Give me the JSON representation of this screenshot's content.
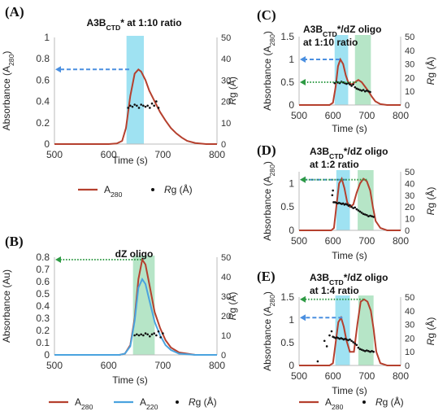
{
  "chart_data": [
    {
      "panel": "(A)",
      "type": "line",
      "title": "A3B<sub>CTD</sub>* at 1:10 ratio",
      "xlabel": "Time (s)",
      "ylabel_left": "Absorbance (A<sub>280</sub>)",
      "ylabel_right": "<i>R</i>g (Å)",
      "xlim": [
        500,
        800
      ],
      "ylim_left": [
        0,
        1
      ],
      "ylim_right": [
        0,
        50
      ],
      "x_ticks": [
        "500",
        "600",
        "700",
        "800"
      ],
      "y_ticks_left": [
        "0",
        "0.2",
        "0.4",
        "0.6",
        "0.8",
        "1"
      ],
      "y_ticks_right": [
        "0",
        "10",
        "20",
        "30",
        "40",
        "50"
      ],
      "shading": [
        {
          "x": [
            633,
            665
          ],
          "color": "#7fd8ee"
        }
      ],
      "arrows": [
        {
          "y": 0.7,
          "x_from": 638,
          "x_to": 503,
          "style": "dashed",
          "color": "#4a8fe0"
        }
      ],
      "series": [
        {
          "name": "A<sub>280</sub>",
          "axis": "left",
          "color": "#b5402e",
          "x": [
            500,
            600,
            615,
            625,
            632,
            640,
            648,
            655,
            660,
            668,
            675,
            685,
            695,
            705,
            715,
            725,
            735,
            745,
            760,
            780,
            800
          ],
          "y": [
            0,
            0,
            0.005,
            0.03,
            0.15,
            0.45,
            0.66,
            0.7,
            0.68,
            0.6,
            0.5,
            0.4,
            0.3,
            0.22,
            0.15,
            0.1,
            0.06,
            0.03,
            0.01,
            0,
            0
          ]
        },
        {
          "name": "Rg",
          "axis": "right",
          "type": "scatter",
          "x": [
            636,
            640,
            644,
            648,
            652,
            656,
            660,
            664,
            668,
            672,
            676,
            680,
            684,
            688,
            692
          ],
          "y": [
            17,
            18,
            17.5,
            18.5,
            18,
            17,
            18.5,
            18,
            17.5,
            18,
            17,
            19,
            18,
            20,
            17
          ]
        }
      ]
    },
    {
      "panel": "(B)",
      "type": "line",
      "title": "dZ oligo",
      "xlabel": "Time (s)",
      "ylabel_left": "Absorbance (Au)",
      "ylabel_right": "<i>R</i>g (Å)",
      "xlim": [
        500,
        800
      ],
      "ylim_left": [
        0,
        0.8
      ],
      "ylim_right": [
        0,
        50
      ],
      "x_ticks": [
        "500",
        "600",
        "700",
        "800"
      ],
      "y_ticks_left": [
        "0",
        "0.1",
        "0.2",
        "0.3",
        "0.4",
        "0.5",
        "0.6",
        "0.7",
        "0.8"
      ],
      "y_ticks_right": [
        "0",
        "10",
        "20",
        "30",
        "40",
        "50"
      ],
      "shading": [
        {
          "x": [
            645,
            685
          ],
          "color": "#9edcb4"
        }
      ],
      "arrows": [
        {
          "y": 0.78,
          "x_from": 660,
          "x_to": 503,
          "style": "dotted",
          "color": "#2e9a44"
        }
      ],
      "series": [
        {
          "name": "A<sub>280</sub>",
          "axis": "left",
          "color": "#b5402e",
          "x": [
            500,
            620,
            630,
            640,
            648,
            655,
            662,
            668,
            675,
            685,
            695,
            705,
            715,
            730,
            745,
            760,
            800
          ],
          "y": [
            0,
            0,
            0.01,
            0.08,
            0.3,
            0.62,
            0.78,
            0.74,
            0.58,
            0.35,
            0.22,
            0.12,
            0.06,
            0.02,
            0.01,
            0,
            0
          ]
        },
        {
          "name": "A<sub>220</sub>",
          "axis": "left",
          "color": "#4aa3df",
          "x": [
            500,
            620,
            630,
            640,
            648,
            655,
            662,
            668,
            675,
            685,
            695,
            705,
            715,
            730,
            760,
            800
          ],
          "y": [
            0,
            0,
            0.01,
            0.07,
            0.28,
            0.55,
            0.62,
            0.58,
            0.45,
            0.27,
            0.16,
            0.08,
            0.04,
            0.01,
            0,
            0
          ]
        },
        {
          "name": "Rg",
          "axis": "right",
          "type": "scatter",
          "x": [
            648,
            652,
            656,
            660,
            664,
            668,
            672,
            676,
            680,
            684,
            688,
            692,
            696,
            700
          ],
          "y": [
            10,
            10.5,
            10,
            10.5,
            10,
            11,
            10.5,
            9.5,
            10.5,
            11,
            10,
            12,
            9,
            11
          ]
        }
      ]
    },
    {
      "panel": "(C)",
      "type": "line",
      "title": "A3B<sub>CTD</sub>*/dZ oligo at 1:10 ratio",
      "xlabel": "Time (s)",
      "ylabel_left": "Absorbance (A<sub>280</sub>)",
      "ylabel_right": "<i>R</i>g (Å)",
      "xlim": [
        500,
        800
      ],
      "ylim_left": [
        0,
        1.5
      ],
      "ylim_right": [
        0,
        50
      ],
      "x_ticks": [
        "500",
        "600",
        "700",
        "800"
      ],
      "y_ticks_left": [
        "0",
        "0.5",
        "1",
        "1.5"
      ],
      "y_ticks_right": [
        "0",
        "10",
        "20",
        "30",
        "40",
        "50"
      ],
      "shading": [
        {
          "x": [
            605,
            645
          ],
          "color": "#7fd8ee"
        },
        {
          "x": [
            665,
            712
          ],
          "color": "#9edcb4"
        }
      ],
      "arrows": [
        {
          "y": 1.0,
          "x_from": 620,
          "x_to": 503,
          "style": "dashed",
          "color": "#4a8fe0"
        },
        {
          "y": 0.5,
          "x_from": 670,
          "x_to": 503,
          "style": "dotted",
          "color": "#2e9a44"
        }
      ],
      "series": [
        {
          "name": "A<sub>280</sub>",
          "axis": "left",
          "color": "#b5402e",
          "x": [
            500,
            590,
            600,
            608,
            615,
            622,
            630,
            638,
            645,
            655,
            665,
            675,
            685,
            695,
            705,
            715,
            725,
            740,
            760,
            800
          ],
          "y": [
            0,
            0,
            0.05,
            0.4,
            0.85,
            1.0,
            0.9,
            0.65,
            0.5,
            0.45,
            0.5,
            0.55,
            0.5,
            0.4,
            0.3,
            0.18,
            0.08,
            0.02,
            0,
            0
          ]
        },
        {
          "name": "Rg",
          "axis": "right",
          "type": "scatter",
          "x": [
            605,
            610,
            615,
            620,
            625,
            630,
            635,
            640,
            645,
            650,
            655,
            660,
            665,
            670,
            675,
            680,
            685,
            690,
            695,
            700,
            705,
            710
          ],
          "y": [
            16,
            17,
            16.5,
            16,
            17,
            16.5,
            16,
            15.5,
            16,
            15,
            14,
            15,
            13,
            12,
            11.5,
            11,
            10.5,
            11,
            10,
            10.5,
            10,
            9.5
          ]
        }
      ]
    },
    {
      "panel": "(D)",
      "type": "line",
      "title": "A3B<sub>CTD</sub>*/dZ oligo at 1:2 ratio",
      "xlabel": "Time (s)",
      "ylabel_left": "Absorbance (A<sub>280</sub>)",
      "ylabel_right": "<i>R</i>g (Å)",
      "xlim": [
        500,
        800
      ],
      "ylim_left": [
        0,
        1.25
      ],
      "ylim_right": [
        0,
        50
      ],
      "x_ticks": [
        "500",
        "600",
        "700",
        "800"
      ],
      "y_ticks_left": [
        "0",
        "0.5",
        "1"
      ],
      "y_ticks_right": [
        "0",
        "10",
        "20",
        "30",
        "40",
        "50"
      ],
      "shading": [
        {
          "x": [
            610,
            650
          ],
          "color": "#7fd8ee"
        },
        {
          "x": [
            673,
            720
          ],
          "color": "#9edcb4"
        }
      ],
      "arrows": [
        {
          "y": 1.08,
          "x_from": 640,
          "x_to": 503,
          "style": "dashed",
          "color": "#4a8fe0"
        },
        {
          "y": 1.08,
          "x_from": 700,
          "x_to": 503,
          "style": "dotted",
          "color": "#2e9a44"
        }
      ],
      "series": [
        {
          "name": "A<sub>280</sub>",
          "axis": "left",
          "color": "#b5402e",
          "x": [
            500,
            595,
            603,
            610,
            618,
            626,
            634,
            642,
            650,
            660,
            670,
            680,
            690,
            700,
            710,
            718,
            726,
            740,
            760,
            800
          ],
          "y": [
            0,
            0,
            0.05,
            0.5,
            1.0,
            1.1,
            0.9,
            0.6,
            0.5,
            0.55,
            0.8,
            1.0,
            1.1,
            1.05,
            0.85,
            0.5,
            0.2,
            0.05,
            0,
            0
          ]
        },
        {
          "name": "Rg",
          "axis": "right",
          "type": "scatter",
          "x": [
            598,
            600,
            602,
            606,
            610,
            614,
            618,
            622,
            626,
            630,
            634,
            638,
            642,
            646,
            650,
            655,
            660,
            665,
            670,
            675,
            680,
            685,
            690,
            695,
            700,
            705,
            710,
            715,
            720
          ],
          "y": [
            30,
            34,
            24,
            24,
            23.5,
            23,
            23.5,
            23,
            22.5,
            23,
            22,
            22.5,
            22,
            21,
            21.5,
            20,
            19,
            19.5,
            18,
            17,
            16,
            15,
            14,
            13.5,
            13,
            12,
            12.5,
            12,
            11.5
          ]
        }
      ]
    },
    {
      "panel": "(E)",
      "type": "line",
      "title": "A3B<sub>CTD</sub>*/dZ oligo at 1:4 ratio",
      "xlabel": "Time (s)",
      "ylabel_left": "Absorbance (A<sub>280</sub>)",
      "ylabel_right": "<i>R</i>g (Å)",
      "xlim": [
        500,
        800
      ],
      "ylim_left": [
        0,
        1.5
      ],
      "ylim_right": [
        0,
        50
      ],
      "x_ticks": [
        "500",
        "600",
        "700",
        "800"
      ],
      "y_ticks_left": [
        "0",
        "0.5",
        "1",
        "1.5"
      ],
      "y_ticks_right": [
        "0",
        "10",
        "20",
        "30",
        "40",
        "50"
      ],
      "shading": [
        {
          "x": [
            607,
            650
          ],
          "color": "#7fd8ee"
        },
        {
          "x": [
            675,
            720
          ],
          "color": "#9edcb4"
        }
      ],
      "arrows": [
        {
          "y": 1.45,
          "x_from": 690,
          "x_to": 503,
          "style": "dotted",
          "color": "#2e9a44"
        },
        {
          "y": 1.05,
          "x_from": 628,
          "x_to": 503,
          "style": "dashed",
          "color": "#4a8fe0"
        }
      ],
      "series": [
        {
          "name": "A<sub>280</sub>",
          "axis": "left",
          "color": "#b5402e",
          "x": [
            500,
            590,
            600,
            608,
            616,
            624,
            632,
            640,
            650,
            662,
            672,
            682,
            692,
            702,
            712,
            720,
            728,
            740,
            760,
            800
          ],
          "y": [
            0,
            0,
            0.05,
            0.5,
            0.95,
            1.05,
            0.85,
            0.55,
            0.3,
            0.3,
            0.9,
            1.4,
            1.45,
            1.4,
            1.2,
            0.8,
            0.3,
            0.05,
            0,
            0
          ]
        },
        {
          "name": "Rg",
          "axis": "right",
          "type": "scatter",
          "x": [
            555,
            575,
            582,
            590,
            596,
            600,
            604,
            608,
            612,
            616,
            620,
            624,
            628,
            632,
            636,
            640,
            645,
            650,
            655,
            660,
            665,
            670,
            675,
            680,
            685,
            690,
            695,
            700,
            705,
            710,
            715,
            720
          ],
          "y": [
            3,
            18,
            14,
            22,
            25,
            21,
            20.5,
            20,
            20.5,
            20,
            19.5,
            20,
            19.5,
            19,
            19.5,
            19,
            18.5,
            19,
            18,
            17,
            16,
            15,
            13,
            12,
            11.5,
            11,
            10.5,
            11,
            10.5,
            10,
            10.5,
            10
          ]
        }
      ]
    }
  ],
  "legends": {
    "A": [
      {
        "kind": "line",
        "color": "#b5402e",
        "label": "A<sub>280</sub>"
      },
      {
        "kind": "dot",
        "label": "<i>R</i>g (Å)"
      }
    ],
    "B": [
      {
        "kind": "line",
        "color": "#b5402e",
        "label": "A<sub>280</sub>"
      },
      {
        "kind": "line",
        "color": "#4aa3df",
        "label": "A<sub>220</sub>"
      },
      {
        "kind": "dot",
        "label": "<i>R</i>g (Å)"
      }
    ],
    "E": [
      {
        "kind": "line",
        "color": "#b5402e",
        "label": "A<sub>280</sub>"
      },
      {
        "kind": "dot",
        "label": "<i>R</i>g (Å)"
      }
    ]
  }
}
